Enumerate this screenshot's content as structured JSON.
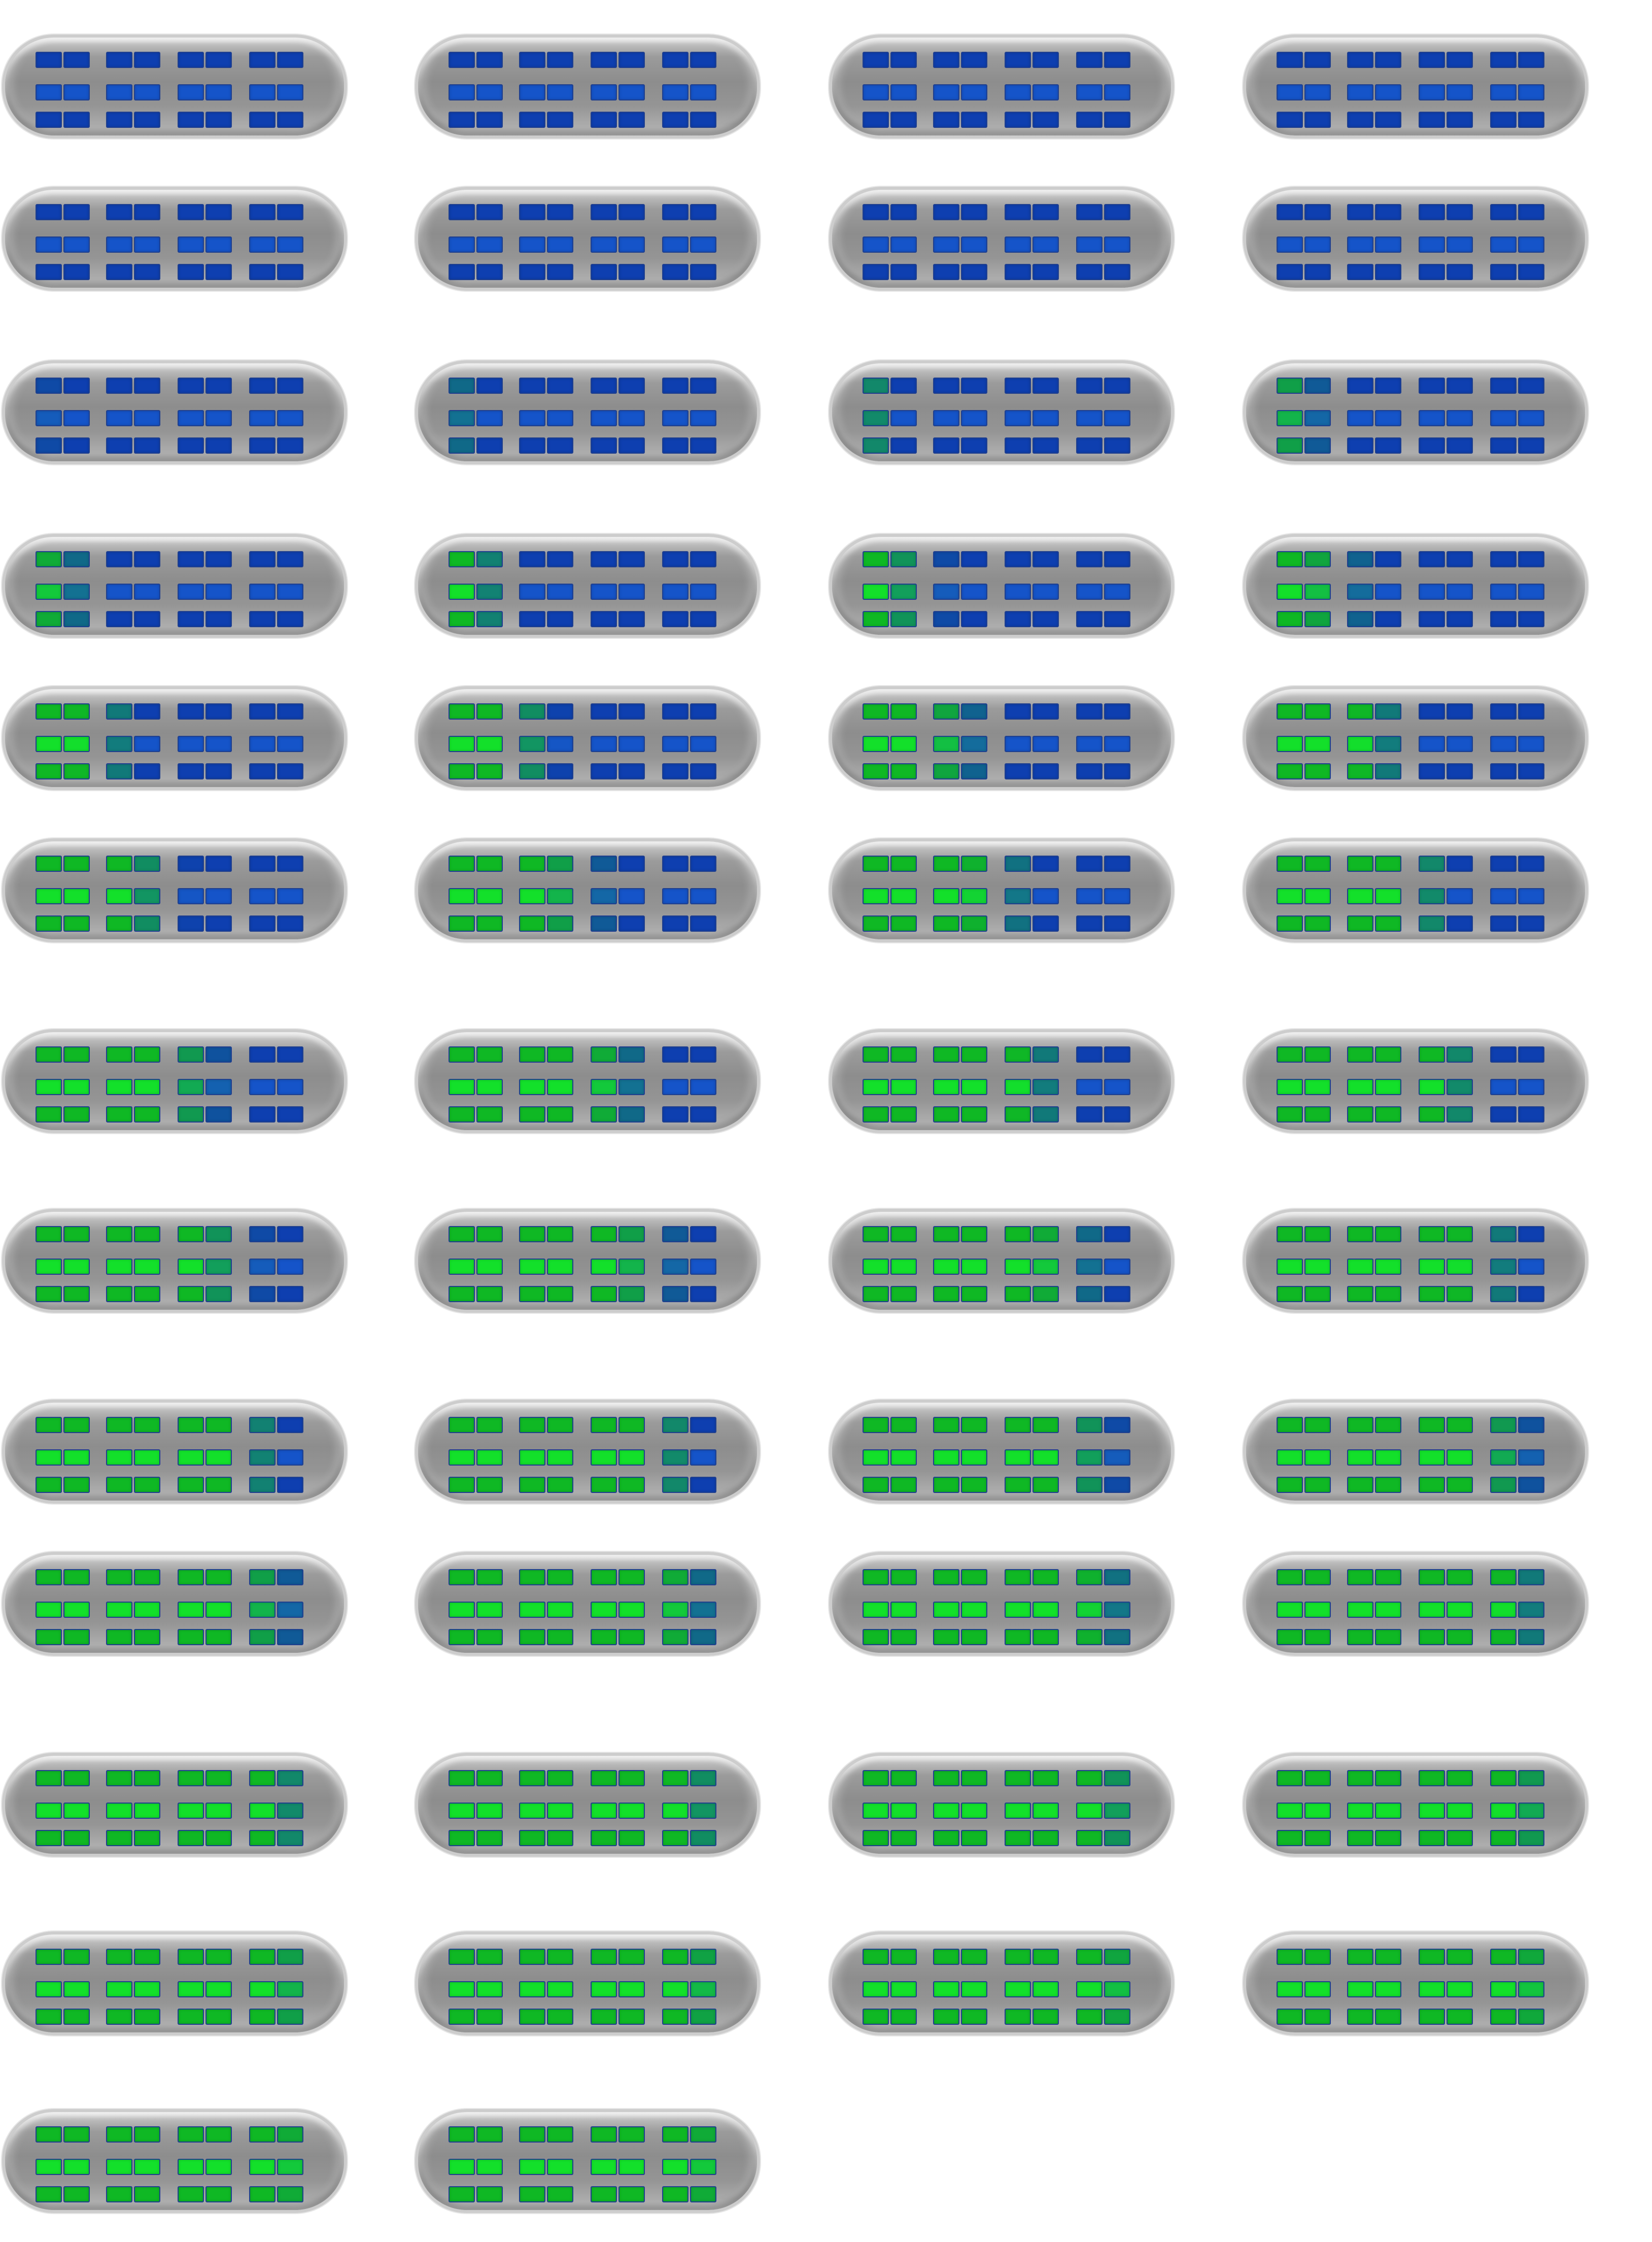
{
  "layout": {
    "columns": 4,
    "rows_per_frame": 3,
    "columns_per_frame": 8,
    "frame_count": 50
  },
  "colors": {
    "blue": "#1554c9",
    "blue_dark": "#0e3fb0",
    "green": "#13e02a",
    "green_dark": "#0fb824",
    "teal": "#12846f",
    "frame_light": "#d0d0d0",
    "frame_mid": "#8d8d8d",
    "cell_border": "#1f3f8f"
  },
  "frames": [
    {
      "level": 0.0
    },
    {
      "level": 0.0
    },
    {
      "level": 0.0
    },
    {
      "level": 0.0
    },
    {
      "level": 0.03
    },
    {
      "level": 0.05
    },
    {
      "level": 0.09
    },
    {
      "level": 0.12
    },
    {
      "level": 0.16
    },
    {
      "level": 0.2
    },
    {
      "level": 0.24
    },
    {
      "level": 0.28
    },
    {
      "level": 0.3
    },
    {
      "level": 0.33
    },
    {
      "level": 0.36
    },
    {
      "level": 0.39
    },
    {
      "level": 0.42
    },
    {
      "level": 0.45
    },
    {
      "level": 0.49
    },
    {
      "level": 0.52
    },
    {
      "level": 0.55
    },
    {
      "level": 0.58
    },
    {
      "level": 0.61
    },
    {
      "level": 0.64
    },
    {
      "level": 0.67
    },
    {
      "level": 0.7
    },
    {
      "level": 0.72
    },
    {
      "level": 0.74
    },
    {
      "level": 0.76
    },
    {
      "level": 0.78
    },
    {
      "level": 0.8
    },
    {
      "level": 0.82
    },
    {
      "level": 0.83
    },
    {
      "level": 0.84
    },
    {
      "level": 0.86
    },
    {
      "level": 0.87
    },
    {
      "level": 0.88
    },
    {
      "level": 0.9
    },
    {
      "level": 0.91
    },
    {
      "level": 0.92
    },
    {
      "level": 0.94
    },
    {
      "level": 0.95
    },
    {
      "level": 0.96
    },
    {
      "level": 0.97
    },
    {
      "level": 0.98
    },
    {
      "level": 0.985
    },
    {
      "level": 0.99
    },
    {
      "level": 0.995
    },
    {
      "level": 1.0
    },
    {
      "level": 1.0
    }
  ]
}
